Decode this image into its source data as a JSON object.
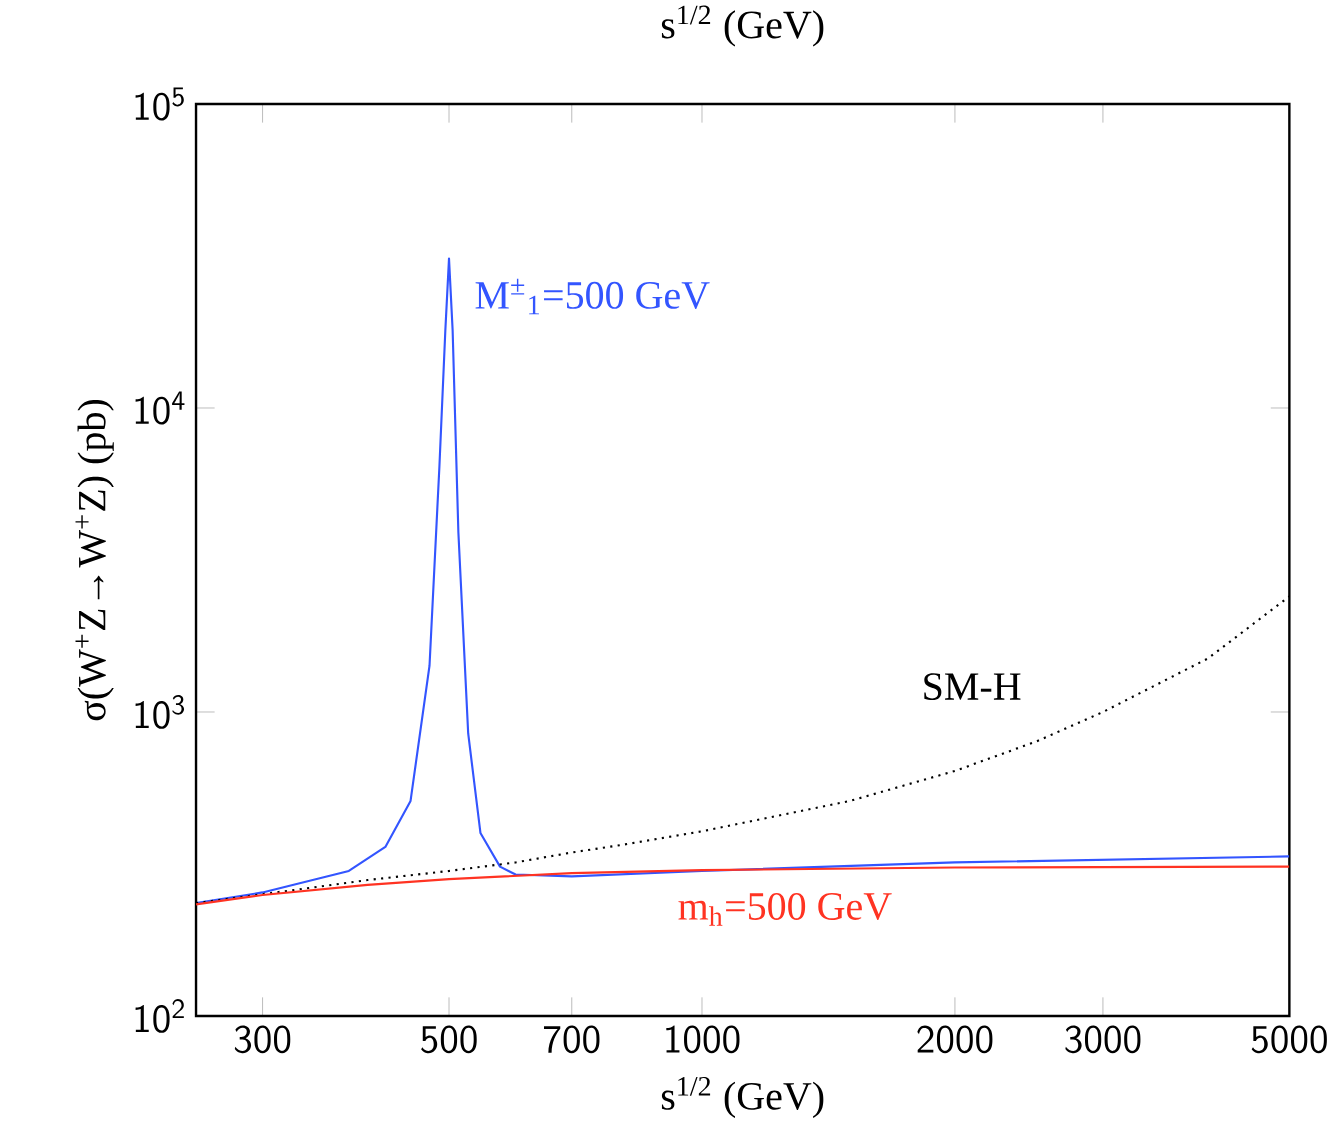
{
  "chart_data": {
    "type": "line",
    "xlabel": "s$^{1/2}$ (GeV)",
    "x2label": "s$^{1/2}$ (GeV)",
    "ylabel": "σ(W$^{+}$Z→W$^{+}$Z) (pb)",
    "log": "xy",
    "xlim": [
      250,
      5000
    ],
    "ylim": [
      100,
      100000
    ],
    "xticks": [
      300,
      500,
      700,
      1000,
      2000,
      3000,
      5000
    ],
    "yticks": [
      {
        "value": 100,
        "label": "10$^{2}$"
      },
      {
        "value": 1000,
        "label": "10$^{3}$"
      },
      {
        "value": 10000,
        "label": "10$^{4}$"
      },
      {
        "value": 100000,
        "label": "10$^{5}$"
      }
    ],
    "marker": "none",
    "series": [
      {
        "name": "M$^{±}$$_{1}$=500 GeV",
        "color": "#3355ff",
        "line_style": "solid",
        "x": [
          250,
          300,
          380,
          420,
          450,
          474,
          487,
          495,
          500,
          505,
          513,
          527,
          545,
          575,
          600,
          700,
          1000,
          2000,
          5000
        ],
        "values": [
          235,
          255,
          300,
          360,
          510,
          1420,
          6400,
          18000,
          31000,
          18000,
          3900,
          850,
          400,
          310,
          292,
          288,
          300,
          320,
          335
        ]
      },
      {
        "name": "SM-H",
        "color": "#000000",
        "line_style": "dotted",
        "x": [
          250,
          400,
          500,
          600,
          700,
          800,
          1000,
          1500,
          2000,
          2500,
          3000,
          4000,
          5000
        ],
        "values": [
          235,
          280,
          300,
          320,
          345,
          365,
          405,
          510,
          640,
          800,
          1000,
          1500,
          2400
        ]
      },
      {
        "name": "m$_{h}$=500 GeV",
        "color": "#ff3322",
        "line_style": "solid",
        "x": [
          250,
          300,
          400,
          500,
          700,
          1000,
          2000,
          5000
        ],
        "values": [
          233,
          250,
          270,
          282,
          295,
          302,
          308,
          310
        ]
      }
    ]
  }
}
